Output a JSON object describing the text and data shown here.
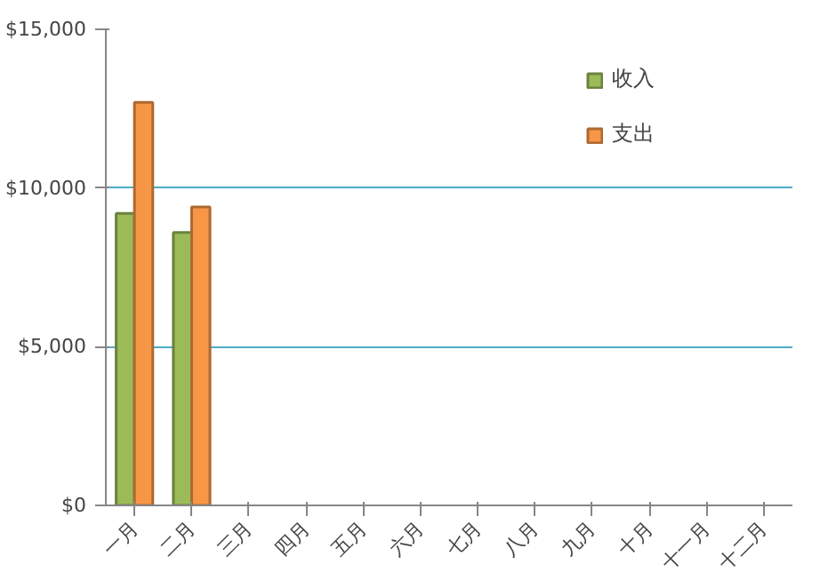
{
  "chart_data": {
    "type": "bar",
    "categories": [
      "一月",
      "二月",
      "三月",
      "四月",
      "五月",
      "六月",
      "七月",
      "八月",
      "九月",
      "十月",
      "十一月",
      "十二月"
    ],
    "series": [
      {
        "name": "收入",
        "color": "#9bbb59",
        "values": [
          9200,
          8600,
          null,
          null,
          null,
          null,
          null,
          null,
          null,
          null,
          null,
          null
        ]
      },
      {
        "name": "支出",
        "color": "#f79646",
        "values": [
          12700,
          9400,
          null,
          null,
          null,
          null,
          null,
          null,
          null,
          null,
          null,
          null
        ]
      }
    ],
    "ylim": [
      0,
      15000
    ],
    "yticks": [
      {
        "value": 0,
        "label": "$0"
      },
      {
        "value": 5000,
        "label": "$5,000"
      },
      {
        "value": 10000,
        "label": "$10,000"
      },
      {
        "value": 15000,
        "label": "$15,000"
      }
    ],
    "grid": "y",
    "legend": "top right"
  }
}
